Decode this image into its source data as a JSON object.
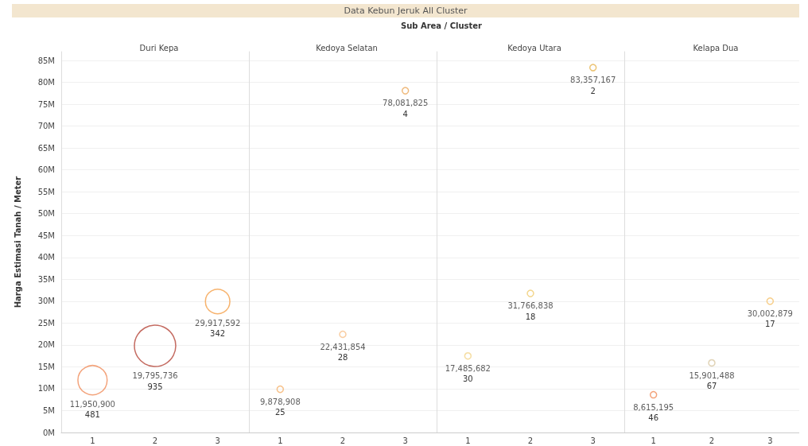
{
  "chart_data": [
    {
      "type": "bubble",
      "title": "Duri Kepa",
      "annotations": [
        "Data Kebun Jeruk All Cluster",
        "Sub Area / Cluster",
        "481",
        "935",
        "342"
      ],
      "ylabel": "Harga Estimasi Tanah / Meter",
      "categories": [
        "1",
        "2",
        "3"
      ],
      "values": [
        11950900,
        19795736,
        29917592
      ],
      "sizes": [
        0.5,
        1,
        0.35
      ],
      "colors": [
        "#f08c5a",
        "#b5463a",
        "#f5a04a"
      ],
      "value_labels": [
        "11,950,900",
        "19,795,736",
        "29,917,592"
      ],
      "ylim": [
        0,
        87000000
      ],
      "yticks": [
        {
          "value": 0,
          "label": "0M"
        },
        {
          "value": 5000000,
          "label": "5M"
        },
        {
          "value": 10000000,
          "label": "10M"
        },
        {
          "value": 15000000,
          "label": "15M"
        },
        {
          "value": 20000000,
          "label": "20M"
        },
        {
          "value": 25000000,
          "label": "25M"
        },
        {
          "value": 30000000,
          "label": "30M"
        },
        {
          "value": 35000000,
          "label": "35M"
        },
        {
          "value": 40000000,
          "label": "40M"
        },
        {
          "value": 45000000,
          "label": "45M"
        },
        {
          "value": 50000000,
          "label": "50M"
        },
        {
          "value": 55000000,
          "label": "55M"
        },
        {
          "value": 60000000,
          "label": "60M"
        },
        {
          "value": 65000000,
          "label": "65M"
        },
        {
          "value": 70000000,
          "label": "70M"
        },
        {
          "value": 75000000,
          "label": "75M"
        },
        {
          "value": 80000000,
          "label": "80M"
        },
        {
          "value": 85000000,
          "label": "85M"
        }
      ],
      "grid": "y"
    },
    {
      "type": "scatter",
      "marker": "circle",
      "title": "Kedoya Selatan",
      "annotations": [
        "25",
        "28",
        "4"
      ],
      "categories": [
        "1",
        "2",
        "3"
      ],
      "values": [
        9878908,
        22431854,
        78081825
      ],
      "colors": [
        "#f5b26b",
        "#f7c08a",
        "#eba85a"
      ],
      "value_labels": [
        "9,878,908",
        "22,431,854",
        "78,081,825"
      ],
      "ylim": [
        0,
        87000000
      ],
      "tick_labels": "x",
      "grid": "y"
    },
    {
      "type": "scatter",
      "marker": "circle",
      "title": "Kedoya Utara",
      "annotations": [
        "30",
        "18",
        "2"
      ],
      "categories": [
        "1",
        "2",
        "3"
      ],
      "values": [
        17485682,
        31766838,
        83357167
      ],
      "colors": [
        "#f3d58a",
        "#f0cc70",
        "#e6b450"
      ],
      "value_labels": [
        "17,485,682",
        "31,766,838",
        "83,357,167"
      ],
      "ylim": [
        0,
        87000000
      ],
      "tick_labels": "x",
      "grid": "y"
    },
    {
      "type": "scatter",
      "marker": "circle",
      "title": "Kelapa Dua",
      "annotations": [
        "46",
        "67",
        "17"
      ],
      "categories": [
        "1",
        "2",
        "3"
      ],
      "values": [
        8615195,
        15901488,
        30002879
      ],
      "colors": [
        "#f08c5a",
        "#d8c8a4",
        "#f5c26b"
      ],
      "value_labels": [
        "8,615,195",
        "15,901,488",
        "30,002,879"
      ],
      "ylim": [
        0,
        87000000
      ],
      "tick_labels": "x",
      "grid": "y"
    }
  ]
}
